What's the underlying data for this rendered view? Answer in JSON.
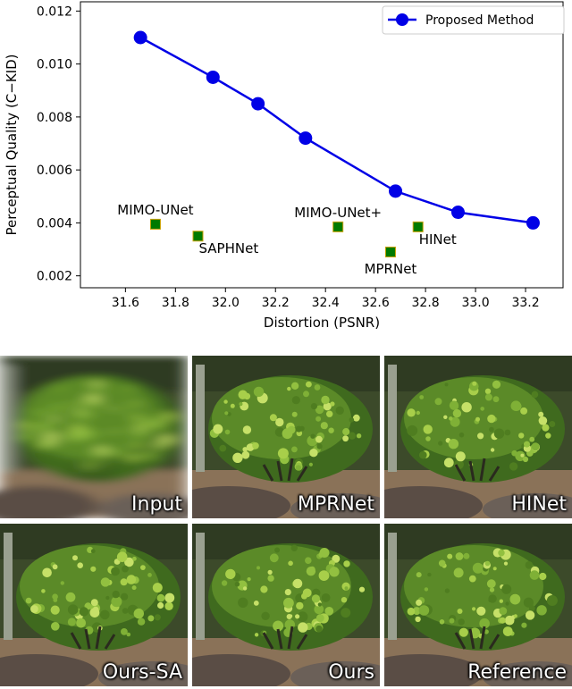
{
  "chart_data": {
    "type": "scatter",
    "xlabel": "Distortion (PSNR)",
    "ylabel": "Perceptual Quality (C−KID)",
    "xlim": [
      31.42,
      33.35
    ],
    "ylim": [
      0.00155,
      0.01235
    ],
    "xticks": [
      31.6,
      31.8,
      32.0,
      32.2,
      32.4,
      32.6,
      32.8,
      33.0,
      33.2
    ],
    "xtick_labels": [
      "31.6",
      "31.8",
      "32.0",
      "32.2",
      "32.4",
      "32.6",
      "32.8",
      "33.0",
      "33.2"
    ],
    "yticks": [
      0.002,
      0.004,
      0.006,
      0.008,
      0.01,
      0.012
    ],
    "ytick_labels": [
      "0.002",
      "0.004",
      "0.006",
      "0.008",
      "0.010",
      "0.012"
    ],
    "grid": false,
    "legend_position": "top-right",
    "series": [
      {
        "name": "Proposed Method",
        "kind": "line",
        "color": "#0000e6",
        "x": [
          31.66,
          31.95,
          32.13,
          32.32,
          32.68,
          32.93,
          33.23
        ],
        "y": [
          0.011,
          0.0095,
          0.0085,
          0.0072,
          0.0052,
          0.0044,
          0.004
        ]
      }
    ],
    "points": [
      {
        "label": "MIMO-UNet",
        "x": 31.72,
        "y": 0.00395,
        "label_pos": "above"
      },
      {
        "label": "SAPHNet",
        "x": 31.89,
        "y": 0.0035,
        "label_pos": "below-right"
      },
      {
        "label": "MIMO-UNet+",
        "x": 32.45,
        "y": 0.00385,
        "label_pos": "above"
      },
      {
        "label": "MPRNet",
        "x": 32.66,
        "y": 0.0029,
        "label_pos": "below"
      },
      {
        "label": "HINet",
        "x": 32.77,
        "y": 0.00385,
        "label_pos": "below-right"
      }
    ],
    "point_color": "#007a00"
  },
  "gallery": {
    "tiles": [
      {
        "label": "Input",
        "style": "blur"
      },
      {
        "label": "MPRNet",
        "style": "sharp"
      },
      {
        "label": "HINet",
        "style": "sharp"
      },
      {
        "label": "Ours-SA",
        "style": "sharp"
      },
      {
        "label": "Ours",
        "style": "sharp"
      },
      {
        "label": "Reference",
        "style": "sharp"
      }
    ]
  }
}
